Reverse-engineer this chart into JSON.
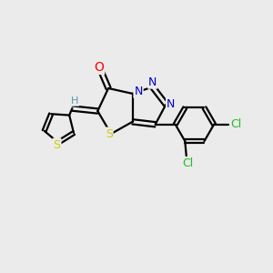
{
  "background_color": "#ebebeb",
  "atom_colors": {
    "C": "#000000",
    "N": "#0000cc",
    "O": "#ff0000",
    "S_thiazole": "#cccc00",
    "S_thiophene": "#cccc00",
    "Cl": "#22bb22",
    "H": "#5599aa"
  },
  "figsize": [
    3.0,
    3.0
  ],
  "dpi": 100,
  "lw": 1.6,
  "font_size": 9.0
}
